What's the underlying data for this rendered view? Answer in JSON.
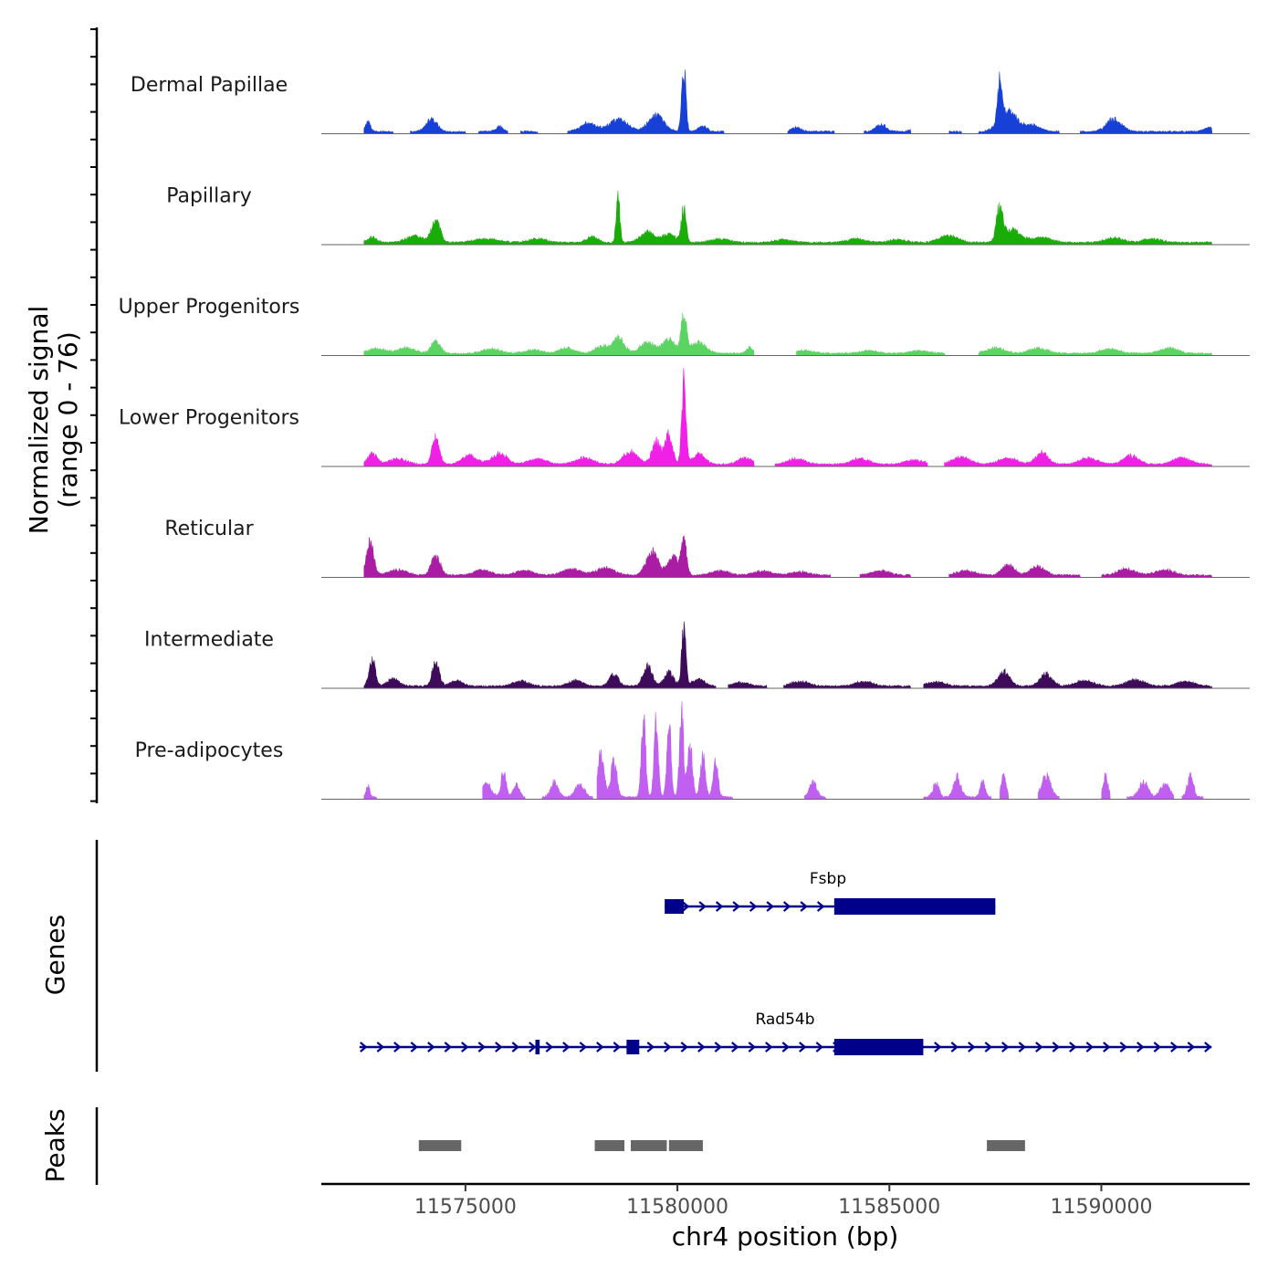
{
  "chart_data": {
    "type": "area",
    "genome_region": {
      "chrom": "chr4",
      "start": 11571600,
      "end": 11593500
    },
    "coverage": {
      "ylabel_line1": "Normalized signal",
      "ylabel_line2": "(range 0 - 76)",
      "ylim": [
        0,
        76
      ],
      "tracks": [
        {
          "name": "Dermal Papillae",
          "color": "#1740d6",
          "peaks": [
            [
              11572700,
              12,
              80
            ],
            [
              11573600,
              8,
              60
            ],
            [
              11574200,
              14,
              180
            ],
            [
              11575800,
              6,
              120
            ],
            [
              11577900,
              10,
              250
            ],
            [
              11578600,
              14,
              300
            ],
            [
              11579500,
              18,
              260
            ],
            [
              11580150,
              72,
              70
            ],
            [
              11580600,
              6,
              150
            ],
            [
              11582800,
              5,
              150
            ],
            [
              11584800,
              8,
              180
            ],
            [
              11585700,
              5,
              200
            ],
            [
              11587600,
              44,
              70
            ],
            [
              11587800,
              22,
              300
            ],
            [
              11588400,
              7,
              250
            ],
            [
              11590300,
              14,
              250
            ],
            [
              11592600,
              5,
              200
            ]
          ],
          "ranges": [
            [
              11572600,
              11573300
            ],
            [
              11573700,
              11575000
            ],
            [
              11575300,
              11576000
            ],
            [
              11576300,
              11576700
            ],
            [
              11577400,
              11581100
            ],
            [
              11582600,
              11583700
            ],
            [
              11584400,
              11585500
            ],
            [
              11586400,
              11586700
            ],
            [
              11587100,
              11589000
            ],
            [
              11589500,
              11592600
            ]
          ]
        },
        {
          "name": "Papillary",
          "color": "#1aad0a",
          "peaks": [
            [
              11572800,
              6,
              150
            ],
            [
              11573800,
              7,
              300
            ],
            [
              11574300,
              26,
              140
            ],
            [
              11575500,
              4,
              400
            ],
            [
              11576700,
              4,
              300
            ],
            [
              11578000,
              6,
              200
            ],
            [
              11578600,
              52,
              60
            ],
            [
              11579300,
              12,
              250
            ],
            [
              11579800,
              10,
              200
            ],
            [
              11580150,
              38,
              80
            ],
            [
              11581000,
              4,
              300
            ],
            [
              11582500,
              3,
              300
            ],
            [
              11584200,
              4,
              300
            ],
            [
              11585200,
              3,
              300
            ],
            [
              11586400,
              8,
              300
            ],
            [
              11587600,
              38,
              100
            ],
            [
              11587900,
              14,
              300
            ],
            [
              11588600,
              6,
              300
            ],
            [
              11590300,
              5,
              300
            ],
            [
              11591200,
              4,
              300
            ]
          ],
          "ranges": [
            [
              11572600,
              11592600
            ]
          ]
        },
        {
          "name": "Upper Progenitors",
          "color": "#5cd463",
          "peaks": [
            [
              11572900,
              5,
              300
            ],
            [
              11573600,
              6,
              300
            ],
            [
              11574300,
              14,
              150
            ],
            [
              11575600,
              5,
              300
            ],
            [
              11576600,
              4,
              300
            ],
            [
              11577400,
              6,
              250
            ],
            [
              11578200,
              8,
              200
            ],
            [
              11578600,
              18,
              200
            ],
            [
              11579300,
              12,
              250
            ],
            [
              11579800,
              16,
              200
            ],
            [
              11580150,
              40,
              90
            ],
            [
              11580500,
              12,
              250
            ],
            [
              11581700,
              7,
              100
            ],
            [
              11583000,
              3,
              300
            ],
            [
              11584500,
              3,
              300
            ],
            [
              11585700,
              3,
              300
            ],
            [
              11587500,
              6,
              300
            ],
            [
              11588500,
              6,
              300
            ],
            [
              11590200,
              5,
              300
            ],
            [
              11591600,
              6,
              300
            ]
          ],
          "ranges": [
            [
              11572600,
              11581800
            ],
            [
              11582800,
              11586300
            ],
            [
              11587100,
              11592600
            ]
          ]
        },
        {
          "name": "Lower Progenitors",
          "color": "#f020e6",
          "peaks": [
            [
              11572800,
              12,
              150
            ],
            [
              11573400,
              6,
              300
            ],
            [
              11574300,
              30,
              120
            ],
            [
              11575100,
              10,
              250
            ],
            [
              11575800,
              12,
              250
            ],
            [
              11576700,
              6,
              300
            ],
            [
              11577800,
              7,
              300
            ],
            [
              11578900,
              14,
              250
            ],
            [
              11579500,
              26,
              150
            ],
            [
              11579800,
              34,
              120
            ],
            [
              11580150,
              94,
              70
            ],
            [
              11580500,
              12,
              200
            ],
            [
              11581600,
              7,
              250
            ],
            [
              11582800,
              6,
              300
            ],
            [
              11584300,
              6,
              300
            ],
            [
              11585600,
              5,
              300
            ],
            [
              11586700,
              8,
              300
            ],
            [
              11587800,
              7,
              300
            ],
            [
              11588600,
              14,
              200
            ],
            [
              11589700,
              7,
              300
            ],
            [
              11590700,
              10,
              250
            ],
            [
              11591900,
              7,
              300
            ]
          ],
          "ranges": [
            [
              11572600,
              11581800
            ],
            [
              11582300,
              11585900
            ],
            [
              11586300,
              11592600
            ]
          ]
        },
        {
          "name": "Reticular",
          "color": "#aa1ca3",
          "peaks": [
            [
              11572750,
              36,
              120
            ],
            [
              11573400,
              6,
              300
            ],
            [
              11574300,
              22,
              150
            ],
            [
              11575400,
              6,
              300
            ],
            [
              11576400,
              5,
              300
            ],
            [
              11577500,
              7,
              300
            ],
            [
              11578300,
              8,
              300
            ],
            [
              11579400,
              26,
              200
            ],
            [
              11579900,
              20,
              200
            ],
            [
              11580150,
              36,
              90
            ],
            [
              11581000,
              5,
              300
            ],
            [
              11582000,
              5,
              300
            ],
            [
              11582900,
              4,
              300
            ],
            [
              11584800,
              5,
              300
            ],
            [
              11586800,
              5,
              300
            ],
            [
              11587800,
              12,
              200
            ],
            [
              11588500,
              10,
              250
            ],
            [
              11590600,
              7,
              300
            ],
            [
              11591500,
              6,
              300
            ]
          ],
          "ranges": [
            [
              11572600,
              11583600
            ],
            [
              11584300,
              11585500
            ],
            [
              11586400,
              11589500
            ],
            [
              11590000,
              11592600
            ]
          ]
        },
        {
          "name": "Intermediate",
          "color": "#3e0a5a",
          "peaks": [
            [
              11572800,
              30,
              100
            ],
            [
              11573300,
              8,
              200
            ],
            [
              11574300,
              26,
              120
            ],
            [
              11574800,
              6,
              200
            ],
            [
              11576300,
              6,
              250
            ],
            [
              11577600,
              6,
              250
            ],
            [
              11578500,
              14,
              150
            ],
            [
              11579300,
              22,
              150
            ],
            [
              11579800,
              16,
              150
            ],
            [
              11580150,
              64,
              70
            ],
            [
              11580500,
              8,
              200
            ],
            [
              11581500,
              4,
              250
            ],
            [
              11582900,
              5,
              300
            ],
            [
              11584400,
              5,
              300
            ],
            [
              11586100,
              5,
              300
            ],
            [
              11587700,
              16,
              200
            ],
            [
              11588700,
              14,
              200
            ],
            [
              11589600,
              6,
              300
            ],
            [
              11590800,
              7,
              300
            ],
            [
              11592000,
              5,
              300
            ]
          ],
          "ranges": [
            [
              11572600,
              11580900
            ],
            [
              11581200,
              11582100
            ],
            [
              11582500,
              11585500
            ],
            [
              11585800,
              11592600
            ]
          ]
        },
        {
          "name": "Pre-adipocytes",
          "color": "#c05ff0",
          "peaks": [
            [
              11572700,
              13,
              60
            ],
            [
              11575500,
              16,
              150
            ],
            [
              11575900,
              30,
              80
            ],
            [
              11576200,
              14,
              100
            ],
            [
              11577100,
              18,
              120
            ],
            [
              11577700,
              14,
              150
            ],
            [
              11578200,
              50,
              100
            ],
            [
              11578500,
              42,
              100
            ],
            [
              11579200,
              92,
              70
            ],
            [
              11579500,
              85,
              70
            ],
            [
              11579800,
              80,
              70
            ],
            [
              11580100,
              90,
              70
            ],
            [
              11580300,
              58,
              80
            ],
            [
              11580600,
              48,
              80
            ],
            [
              11580900,
              40,
              80
            ],
            [
              11583200,
              16,
              120
            ],
            [
              11586100,
              16,
              100
            ],
            [
              11586600,
              22,
              120
            ],
            [
              11587200,
              18,
              80
            ],
            [
              11587700,
              26,
              80
            ],
            [
              11588700,
              24,
              150
            ],
            [
              11590100,
              24,
              80
            ],
            [
              11591000,
              16,
              150
            ],
            [
              11591500,
              16,
              150
            ],
            [
              11592100,
              24,
              100
            ]
          ],
          "ranges": [
            [
              11572600,
              11572900
            ],
            [
              11575400,
              11576400
            ],
            [
              11576800,
              11578000
            ],
            [
              11578100,
              11581300
            ],
            [
              11583000,
              11583500
            ],
            [
              11585800,
              11587400
            ],
            [
              11587600,
              11587800
            ],
            [
              11588500,
              11589000
            ],
            [
              11590000,
              11590200
            ],
            [
              11590600,
              11591700
            ],
            [
              11591900,
              11592400
            ]
          ]
        }
      ]
    },
    "genes": {
      "ylabel": "Genes",
      "items": [
        {
          "name": "Fsbp",
          "start": 11579700,
          "end": 11587500,
          "strand": "+",
          "utr": [
            [
              11579700,
              11580150
            ]
          ],
          "cds": [
            [
              11583700,
              11587500
            ]
          ]
        },
        {
          "name": "Rad54b",
          "start": 11572500,
          "end": 11592600,
          "strand": "+",
          "utr": [
            [
              11576650,
              11576750
            ],
            [
              11578800,
              11579100
            ]
          ],
          "cds": [
            [
              11583700,
              11585800
            ]
          ]
        }
      ]
    },
    "peaks": {
      "ylabel": "Peaks",
      "regions": [
        [
          11573900,
          11574900
        ],
        [
          11578050,
          11578750
        ],
        [
          11578900,
          11579750
        ],
        [
          11579800,
          11580600
        ],
        [
          11587300,
          11588200
        ]
      ]
    },
    "x_axis": {
      "title": "chr4 position (bp)",
      "ticks": [
        11575000,
        11580000,
        11585000,
        11590000
      ],
      "tick_labels": [
        "11575000",
        "11580000",
        "11585000",
        "11590000"
      ]
    }
  }
}
